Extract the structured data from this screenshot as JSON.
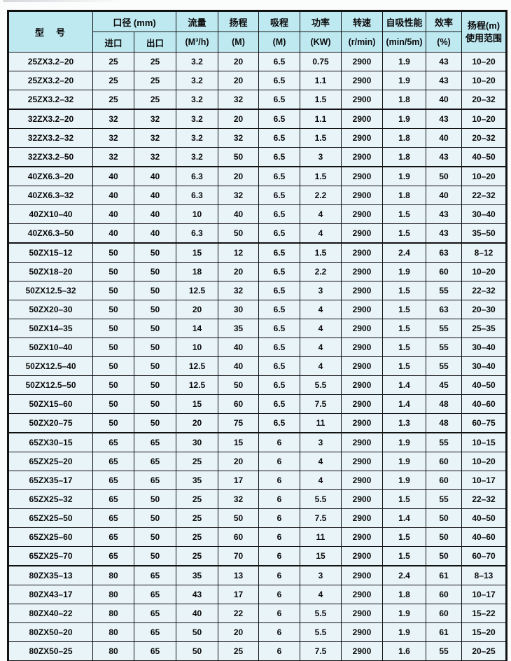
{
  "table": {
    "header_bg": "#bfe9f1",
    "row_bg": "#e9f4f8",
    "border_color": "#121212",
    "header": {
      "model": "型　号",
      "caliber_group": "口径 (mm)",
      "inlet": "进口",
      "outlet": "出口",
      "flow_label": "流量",
      "flow_unit": "(M³/h)",
      "head_label": "扬程",
      "head_unit": "(M)",
      "suction_label": "吸程",
      "suction_unit": "(M)",
      "power_label": "功率",
      "power_unit": "(KW)",
      "speed_label": "转速",
      "speed_unit": "(r/min)",
      "selfprime_label": "自吸性能",
      "selfprime_unit": "(min/5m)",
      "efficiency_label": "效率",
      "efficiency_unit": "(%)",
      "range_line1": "扬程(m)",
      "range_line2": "使用范围"
    },
    "rows": [
      [
        "25ZX3.2–20",
        "25",
        "25",
        "3.2",
        "20",
        "6.5",
        "0.75",
        "2900",
        "1.9",
        "43",
        "10–20"
      ],
      [
        "25ZX3.2–20",
        "25",
        "25",
        "3.2",
        "20",
        "6.5",
        "1.1",
        "2900",
        "1.9",
        "43",
        "10–20"
      ],
      [
        "25ZX3.2–32",
        "25",
        "25",
        "3.2",
        "32",
        "6.5",
        "1.5",
        "2900",
        "1.8",
        "40",
        "20–32"
      ],
      [
        "32ZX3.2–20",
        "32",
        "32",
        "3.2",
        "20",
        "6.5",
        "1.1",
        "2900",
        "1.9",
        "43",
        "10–20"
      ],
      [
        "32ZX3.2–32",
        "32",
        "32",
        "3.2",
        "32",
        "6.5",
        "1.5",
        "2900",
        "1.8",
        "40",
        "20–32"
      ],
      [
        "32ZX3.2–50",
        "32",
        "32",
        "3.2",
        "50",
        "6.5",
        "3",
        "2900",
        "1.8",
        "43",
        "40–50"
      ],
      [
        "40ZX6.3–20",
        "40",
        "40",
        "6.3",
        "20",
        "6.5",
        "1.5",
        "2900",
        "1.9",
        "50",
        "10–20"
      ],
      [
        "40ZX6.3–32",
        "40",
        "40",
        "6.3",
        "32",
        "6.5",
        "2.2",
        "2900",
        "1.8",
        "40",
        "22–32"
      ],
      [
        "40ZX10–40",
        "40",
        "40",
        "10",
        "40",
        "6.5",
        "4",
        "2900",
        "1.5",
        "43",
        "30–40"
      ],
      [
        "40ZX6.3–50",
        "40",
        "40",
        "6.3",
        "50",
        "6.5",
        "4",
        "2900",
        "1.5",
        "43",
        "35–50"
      ],
      [
        "50ZX15–12",
        "50",
        "50",
        "15",
        "12",
        "6.5",
        "1.5",
        "2900",
        "2.4",
        "63",
        "8–12"
      ],
      [
        "50ZX18–20",
        "50",
        "50",
        "18",
        "20",
        "6.5",
        "2.2",
        "2900",
        "1.9",
        "60",
        "10–20"
      ],
      [
        "50ZX12.5–32",
        "50",
        "50",
        "12.5",
        "32",
        "6.5",
        "3",
        "2900",
        "1.5",
        "55",
        "22–32"
      ],
      [
        "50ZX20–30",
        "50",
        "50",
        "20",
        "30",
        "6.5",
        "4",
        "2900",
        "1.5",
        "63",
        "20–30"
      ],
      [
        "50ZX14–35",
        "50",
        "50",
        "14",
        "35",
        "6.5",
        "4",
        "2900",
        "1.5",
        "55",
        "25–35"
      ],
      [
        "50ZX10–40",
        "50",
        "50",
        "10",
        "40",
        "6.5",
        "4",
        "2900",
        "1.5",
        "55",
        "30–40"
      ],
      [
        "50ZX12.5–40",
        "50",
        "50",
        "12.5",
        "40",
        "6.5",
        "4",
        "2900",
        "1.5",
        "55",
        "30–40"
      ],
      [
        "50ZX12.5–50",
        "50",
        "50",
        "12.5",
        "50",
        "6.5",
        "5.5",
        "2900",
        "1.4",
        "45",
        "40–50"
      ],
      [
        "50ZX15–60",
        "50",
        "50",
        "15",
        "60",
        "6.5",
        "7.5",
        "2900",
        "1.4",
        "48",
        "40–60"
      ],
      [
        "50ZX20–75",
        "50",
        "50",
        "20",
        "75",
        "6.5",
        "11",
        "2900",
        "1.3",
        "48",
        "60–75"
      ],
      [
        "65ZX30–15",
        "65",
        "65",
        "30",
        "15",
        "6",
        "3",
        "2900",
        "1.9",
        "55",
        "10–15"
      ],
      [
        "65ZX25–20",
        "65",
        "65",
        "25",
        "20",
        "6",
        "4",
        "2900",
        "1.9",
        "60",
        "10–20"
      ],
      [
        "65ZX35–17",
        "65",
        "65",
        "35",
        "17",
        "6",
        "4",
        "2900",
        "1.9",
        "60",
        "10–17"
      ],
      [
        "65ZX25–32",
        "65",
        "50",
        "25",
        "32",
        "6",
        "5.5",
        "2900",
        "1.5",
        "55",
        "22–32"
      ],
      [
        "65ZX25–50",
        "65",
        "50",
        "25",
        "50",
        "6",
        "7.5",
        "2900",
        "1.4",
        "50",
        "40–50"
      ],
      [
        "65ZX25–60",
        "65",
        "50",
        "25",
        "60",
        "6",
        "11",
        "2900",
        "1.5",
        "50",
        "40–60"
      ],
      [
        "65ZX25–70",
        "65",
        "50",
        "25",
        "70",
        "6",
        "15",
        "2900",
        "1.5",
        "50",
        "60–70"
      ],
      [
        "80ZX35–13",
        "80",
        "65",
        "35",
        "13",
        "6",
        "3",
        "2900",
        "2.4",
        "61",
        "8–13"
      ],
      [
        "80ZX43–17",
        "80",
        "65",
        "43",
        "17",
        "6",
        "4",
        "2900",
        "1.8",
        "60",
        "10–17"
      ],
      [
        "80ZX40–22",
        "80",
        "65",
        "40",
        "22",
        "6",
        "5.5",
        "2900",
        "1.9",
        "60",
        "15–22"
      ],
      [
        "80ZX50–20",
        "80",
        "65",
        "50",
        "20",
        "6",
        "5.5",
        "2900",
        "1.9",
        "61",
        "15–20"
      ],
      [
        "80ZX50–25",
        "80",
        "65",
        "50",
        "25",
        "6",
        "7.5",
        "2900",
        "1.6",
        "55",
        "20–25"
      ]
    ],
    "group_separator_rows": [
      3,
      6,
      10,
      20,
      27
    ]
  }
}
